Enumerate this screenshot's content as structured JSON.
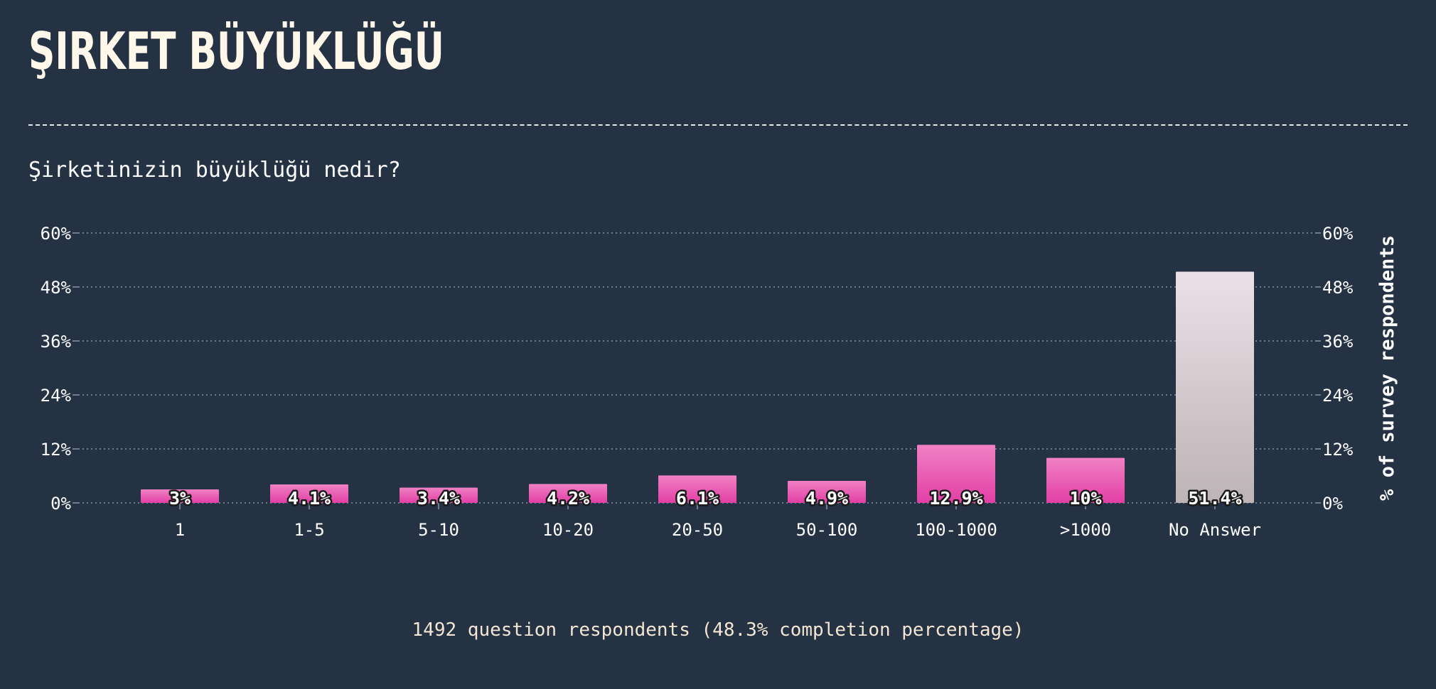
{
  "header": {
    "title": "ŞIRKET BÜYÜKLÜĞÜ",
    "question": "Şirketinizin büyüklüğü nedir?"
  },
  "footer": {
    "note": "1492 question respondents (48.3% completion percentage)"
  },
  "colors": {
    "background": "#243244",
    "bar_pink_top": "#f081c4",
    "bar_pink_bottom": "#e23fa5",
    "bar_no_answer_top": "#ece0e6",
    "bar_no_answer_bottom": "#bdb4b7",
    "grid": "#8a94a3",
    "text": "#ffffff",
    "title": "#fff8ea"
  },
  "chart_data": {
    "type": "bar",
    "categories": [
      "1",
      "1-5",
      "5-10",
      "10-20",
      "20-50",
      "50-100",
      "100-1000",
      ">1000",
      "No Answer"
    ],
    "values": [
      3,
      4.1,
      3.4,
      4.2,
      6.1,
      4.9,
      12.9,
      10,
      51.4
    ],
    "value_labels": [
      "3%",
      "4.1%",
      "3.4%",
      "4.2%",
      "6.1%",
      "4.9%",
      "12.9%",
      "10%",
      "51.4%"
    ],
    "ylim": [
      0,
      60
    ],
    "yticks": [
      0,
      12,
      24,
      36,
      48,
      60
    ],
    "ytick_labels": [
      "0%",
      "12%",
      "24%",
      "36%",
      "48%",
      "60%"
    ],
    "ylabel": "% of survey respondents",
    "xlabel": "",
    "grid": true,
    "secondary_y_axis": true
  }
}
